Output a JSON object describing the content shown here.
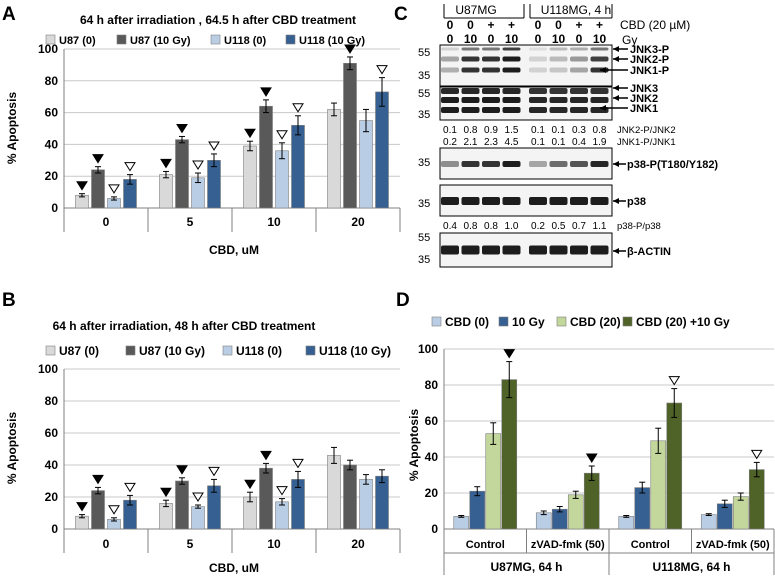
{
  "colors": {
    "light_gray": "#d9d9d9",
    "dark_gray": "#595959",
    "light_blue": "#b9cde5",
    "blue": "#376092",
    "light_green": "#c3d69b",
    "dark_green": "#4f6228"
  },
  "chart_data": [
    {
      "panel": "A",
      "type": "bar",
      "title": "64 h after irradiation , 64.5 h after CBD treatment",
      "xlabel": "CBD, uM",
      "ylabel": "% Apoptosis",
      "ylim": [
        0,
        100
      ],
      "yticks": [
        "0",
        "20",
        "40",
        "60",
        "80",
        "100"
      ],
      "categories": [
        "0",
        "5",
        "10",
        "20"
      ],
      "legend_position": "top",
      "series": [
        {
          "name": "U87 (0)",
          "color": "#d9d9d9",
          "values": [
            8,
            21,
            39,
            62
          ],
          "errors": [
            1,
            2,
            3,
            4
          ],
          "markers": [
            "",
            "",
            "",
            ""
          ]
        },
        {
          "name": "U87 (10 Gy)",
          "color": "#595959",
          "values": [
            24,
            43,
            64,
            91
          ],
          "errors": [
            2,
            2,
            4,
            4
          ],
          "markers": [
            "",
            "",
            "",
            ""
          ]
        },
        {
          "name": "U118 (0)",
          "color": "#b9cde5",
          "values": [
            6,
            19,
            36,
            55
          ],
          "errors": [
            1,
            3,
            5,
            7
          ],
          "markers": [
            "",
            "",
            "",
            ""
          ]
        },
        {
          "name": "U118 (10 Gy)",
          "color": "#376092",
          "values": [
            18,
            30,
            52,
            73
          ],
          "errors": [
            3,
            4,
            6,
            9
          ],
          "markers": [
            "",
            "",
            "",
            ""
          ]
        }
      ],
      "marks": [
        {
          "group": 0,
          "series": 0,
          "symbol": "▼"
        },
        {
          "group": 0,
          "series": 1,
          "symbol": "▼"
        },
        {
          "group": 0,
          "series": 2,
          "symbol": "▽"
        },
        {
          "group": 0,
          "series": 3,
          "symbol": "▽"
        },
        {
          "group": 1,
          "series": 0,
          "symbol": "▼"
        },
        {
          "group": 1,
          "series": 1,
          "symbol": "▼"
        },
        {
          "group": 1,
          "series": 2,
          "symbol": "▽"
        },
        {
          "group": 1,
          "series": 3,
          "symbol": "▽"
        },
        {
          "group": 2,
          "series": 0,
          "symbol": "▼"
        },
        {
          "group": 2,
          "series": 1,
          "symbol": "▼"
        },
        {
          "group": 2,
          "series": 2,
          "symbol": "▽"
        },
        {
          "group": 2,
          "series": 3,
          "symbol": "▽"
        },
        {
          "group": 3,
          "series": 1,
          "symbol": "▼"
        },
        {
          "group": 3,
          "series": 3,
          "symbol": "▽"
        }
      ]
    },
    {
      "panel": "B",
      "type": "bar",
      "title": "64 h after irradiation, 48 h after CBD treatment",
      "xlabel": "CBD, uM",
      "ylabel": "% Apoptosis",
      "ylim": [
        0,
        100
      ],
      "yticks": [
        "0",
        "20",
        "40",
        "60",
        "80",
        "100"
      ],
      "categories": [
        "0",
        "5",
        "10",
        "20"
      ],
      "legend_position": "top",
      "series": [
        {
          "name": "U87 (0)",
          "color": "#d9d9d9",
          "values": [
            8,
            16,
            20,
            46
          ],
          "errors": [
            1,
            2,
            3,
            5
          ]
        },
        {
          "name": "U87 (10 Gy)",
          "color": "#595959",
          "values": [
            24,
            30,
            38,
            40
          ],
          "errors": [
            2,
            2,
            3,
            3
          ]
        },
        {
          "name": "U118 (0)",
          "color": "#b9cde5",
          "values": [
            6,
            14,
            17,
            31
          ],
          "errors": [
            1,
            1,
            2,
            3
          ]
        },
        {
          "name": "U118 (10 Gy)",
          "color": "#376092",
          "values": [
            18,
            27,
            31,
            33
          ],
          "errors": [
            3,
            4,
            5,
            4
          ]
        }
      ],
      "marks": [
        {
          "group": 0,
          "series": 0,
          "symbol": "▼"
        },
        {
          "group": 0,
          "series": 1,
          "symbol": "▼"
        },
        {
          "group": 0,
          "series": 2,
          "symbol": "▽"
        },
        {
          "group": 0,
          "series": 3,
          "symbol": "▽"
        },
        {
          "group": 1,
          "series": 0,
          "symbol": "▼"
        },
        {
          "group": 1,
          "series": 1,
          "symbol": "▼"
        },
        {
          "group": 1,
          "series": 2,
          "symbol": "▽"
        },
        {
          "group": 1,
          "series": 3,
          "symbol": "▽"
        },
        {
          "group": 2,
          "series": 0,
          "symbol": "▼"
        },
        {
          "group": 2,
          "series": 1,
          "symbol": "▼"
        },
        {
          "group": 2,
          "series": 2,
          "symbol": "▽"
        },
        {
          "group": 2,
          "series": 3,
          "symbol": "▽"
        }
      ]
    },
    {
      "panel": "D",
      "type": "bar",
      "title": "",
      "xlabel": "",
      "ylabel": "% Apoptosis",
      "ylim": [
        0,
        100
      ],
      "yticks": [
        "0",
        "20",
        "40",
        "60",
        "80",
        "100"
      ],
      "categories": [
        "Control",
        "zVAD-fmk (50)",
        "Control",
        "zVAD-fmk (50)"
      ],
      "group_labels": [
        "U87MG, 64 h",
        "U118MG, 64 h"
      ],
      "legend_position": "top",
      "series": [
        {
          "name": "CBD (0)",
          "color": "#b9cde5",
          "values": [
            7,
            9,
            7,
            8
          ],
          "errors": [
            0.5,
            1,
            0.5,
            0.5
          ]
        },
        {
          "name": "10 Gy",
          "color": "#376092",
          "values": [
            21,
            11,
            23,
            14
          ],
          "errors": [
            2.5,
            1.5,
            3,
            2
          ]
        },
        {
          "name": "CBD (20)",
          "color": "#c3d69b",
          "values": [
            53,
            19,
            49,
            18
          ],
          "errors": [
            6,
            2,
            7,
            2
          ]
        },
        {
          "name": "CBD (20) +10 Gy",
          "color": "#4f6228",
          "values": [
            83,
            31,
            70,
            33
          ],
          "errors": [
            10,
            4,
            8,
            4
          ]
        }
      ],
      "marks": [
        {
          "group": 0,
          "series": 3,
          "symbol": "▼"
        },
        {
          "group": 1,
          "series": 3,
          "symbol": "▼"
        },
        {
          "group": 2,
          "series": 3,
          "symbol": "▽"
        },
        {
          "group": 3,
          "series": 3,
          "symbol": "▽"
        }
      ]
    }
  ],
  "panel_labels": {
    "a": "A",
    "b": "B",
    "c": "C",
    "d": "D"
  },
  "blot": {
    "cell_u87": "U87MG",
    "cell_u118": "U118MG,   4 h",
    "cbd_label": "CBD (20 µM)",
    "gy_label": "Gy",
    "cbd_row": [
      "0",
      "0",
      "+",
      "+",
      "0",
      "0",
      "+",
      "+"
    ],
    "gy_row": [
      "0",
      "10",
      "0",
      "10",
      "0",
      "10",
      "0",
      "10"
    ],
    "mw_55": "55",
    "mw_35": "35",
    "jnk3p": "JNK3-P",
    "jnk2p": "JNK2-P",
    "jnk1p": "JNK1-P",
    "jnk3": "JNK3",
    "jnk2": "JNK2",
    "jnk1": "JNK1",
    "ratio_jnk2": [
      "0.1",
      "0.8",
      "0.9",
      "1.5",
      "0.1",
      "0.1",
      "0.3",
      "0.8"
    ],
    "ratio_jnk2_label": "JNK2-P/JNK2",
    "ratio_jnk1": [
      "0.2",
      "2.1",
      "2.3",
      "4.5",
      "0.1",
      "0.1",
      "0.4",
      "1.9"
    ],
    "ratio_jnk1_label": "JNK1-P/JNK1",
    "p38p": "p38-P(T180/Y182)",
    "p38": "p38",
    "ratio_p38": [
      "0.4",
      "0.8",
      "0.8",
      "1.0",
      "0.2",
      "0.5",
      "0.7",
      "1.1"
    ],
    "ratio_p38_label": "p38-P/p38",
    "actin": "β-ACTIN"
  }
}
